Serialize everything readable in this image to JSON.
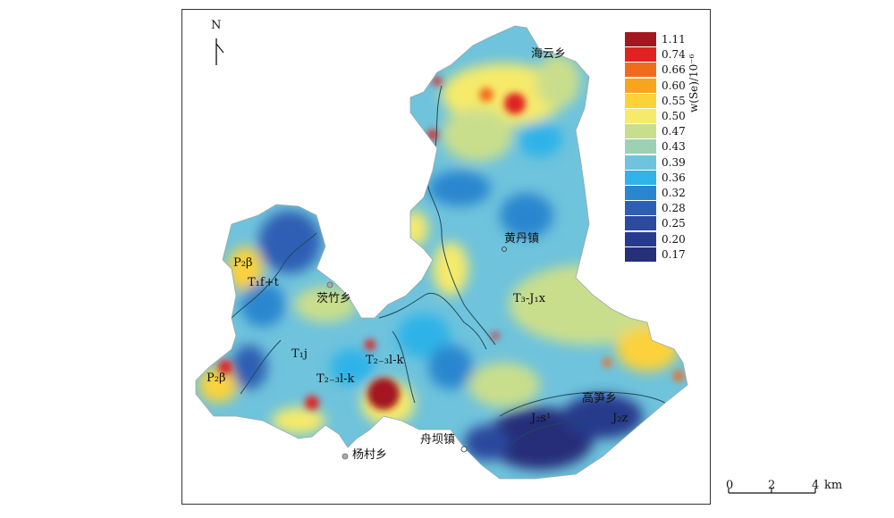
{
  "map": {
    "north_label": "N",
    "legend": {
      "title": "w(Se)/10⁻⁶",
      "classes": [
        {
          "value": "1.11",
          "color": "#a31820"
        },
        {
          "value": "0.74",
          "color": "#e02222"
        },
        {
          "value": "0.66",
          "color": "#f26b1d"
        },
        {
          "value": "0.60",
          "color": "#f9a41e"
        },
        {
          "value": "0.55",
          "color": "#fbd23a"
        },
        {
          "value": "0.50",
          "color": "#f6ea6a"
        },
        {
          "value": "0.47",
          "color": "#c9de8c"
        },
        {
          "value": "0.43",
          "color": "#9ed1b4"
        },
        {
          "value": "0.39",
          "color": "#6fc3dc"
        },
        {
          "value": "0.36",
          "color": "#2fb3e8"
        },
        {
          "value": "0.32",
          "color": "#2a86cf"
        },
        {
          "value": "0.28",
          "color": "#2e5fb4"
        },
        {
          "value": "0.25",
          "color": "#2c4a9e"
        },
        {
          "value": "0.20",
          "color": "#283a8c"
        },
        {
          "value": "0.17",
          "color": "#252f7a"
        }
      ]
    },
    "places": {
      "haiyun": "海云乡",
      "huangdan": "黄丹镇",
      "maozhu": "茨竹乡",
      "yangcun": "杨村乡",
      "zhouba": "舟坝镇",
      "gaosun": "高笋乡"
    },
    "formations": {
      "p2b_1": "P₂β",
      "t1ft": "T₁f+t",
      "t1j": "T₁j",
      "p2b_2": "P₂β",
      "t23lk_1": "T₂₋₃l-k",
      "t23lk_2": "T₂₋₃l-k",
      "t3j1x": "T₃-J₁x",
      "j2s": "J₂s¹",
      "j2z": "J₂z"
    },
    "scale": {
      "zero": "0",
      "two": "2",
      "four": "4",
      "unit": "km"
    }
  }
}
